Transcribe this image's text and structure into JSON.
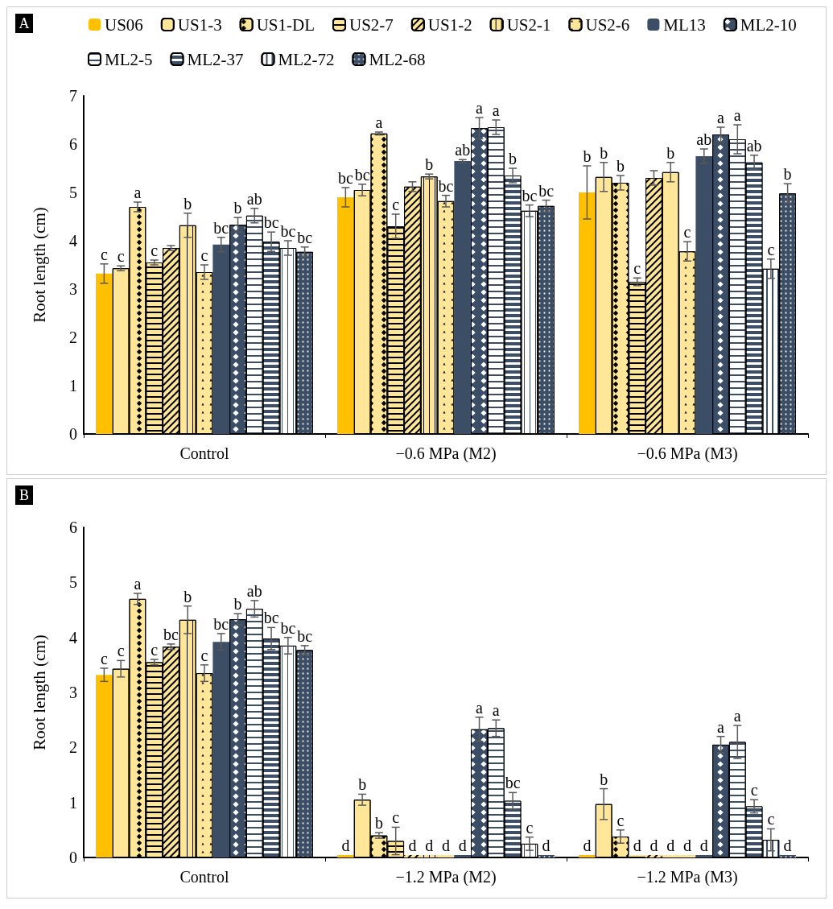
{
  "chart_data": [
    {
      "type": "bar",
      "annotations": [
        "A"
      ],
      "ylabel": "Root length (cm)",
      "categories": [
        "Control",
        "−0.6 MPa (M2)",
        "−0.6 MPa (M3)"
      ],
      "ylim": [
        0,
        7
      ],
      "yticks": [
        0,
        1,
        2,
        3,
        4,
        5,
        6,
        7
      ],
      "grid": false,
      "legend": "top",
      "series": [
        {
          "name": "US06",
          "color": "#ffc000",
          "values": [
            3.32,
            4.9,
            5.0
          ],
          "errors": [
            0.2,
            0.2,
            0.55
          ],
          "value_labels": [
            "c",
            "bc",
            "b"
          ]
        },
        {
          "name": "US1-3",
          "color": "#ffe699",
          "values": [
            3.43,
            5.05,
            5.32
          ],
          "errors": [
            0.05,
            0.12,
            0.3
          ],
          "value_labels": [
            "c",
            "bc",
            "b"
          ]
        },
        {
          "name": "US1-DL",
          "color": "#ffe699",
          "values": [
            4.7,
            6.22,
            5.2
          ],
          "errors": [
            0.1,
            0.03,
            0.15
          ],
          "value_labels": [
            "a",
            "a",
            "b"
          ]
        },
        {
          "name": "US2-7",
          "color": "#ffe699",
          "values": [
            3.55,
            4.3,
            3.15
          ],
          "errors": [
            0.05,
            0.25,
            0.08
          ],
          "value_labels": [
            "c",
            "c",
            "c"
          ]
        },
        {
          "name": "US1-2",
          "color": "#ffe699",
          "values": [
            3.85,
            5.12,
            5.3
          ],
          "errors": [
            0.05,
            0.1,
            0.15
          ],
          "value_labels": [
            null,
            null,
            null
          ]
        },
        {
          "name": "US2-1",
          "color": "#ffe699",
          "values": [
            4.32,
            5.33,
            5.42
          ],
          "errors": [
            0.25,
            0.05,
            0.2
          ],
          "value_labels": [
            "b",
            "b",
            "b"
          ]
        },
        {
          "name": "US2-6",
          "color": "#ffe699",
          "values": [
            3.35,
            4.82,
            3.78
          ],
          "errors": [
            0.15,
            0.12,
            0.2
          ],
          "value_labels": [
            "c",
            "bc",
            "c"
          ]
        },
        {
          "name": "ML13",
          "color": "#3b4e66",
          "values": [
            3.92,
            5.65,
            5.75
          ],
          "errors": [
            0.15,
            0.03,
            0.15
          ],
          "value_labels": [
            "bc",
            "ab",
            "ab"
          ]
        },
        {
          "name": "ML2-10",
          "color": "#3b4e66",
          "values": [
            4.33,
            6.33,
            6.2
          ],
          "errors": [
            0.15,
            0.22,
            0.15
          ],
          "value_labels": [
            "b",
            "a",
            "a"
          ]
        },
        {
          "name": "ML2-5",
          "color": "#ffffff",
          "values": [
            4.52,
            6.35,
            6.1
          ],
          "errors": [
            0.15,
            0.15,
            0.3
          ],
          "value_labels": [
            "ab",
            "a",
            "a"
          ]
        },
        {
          "name": "ML2-37",
          "color": "#3b4e66",
          "values": [
            3.98,
            5.35,
            5.62
          ],
          "errors": [
            0.2,
            0.15,
            0.15
          ],
          "value_labels": [
            "bc",
            "b",
            "ab"
          ]
        },
        {
          "name": "ML2-72",
          "color": "#ffffff",
          "values": [
            3.85,
            4.62,
            3.42
          ],
          "errors": [
            0.15,
            0.12,
            0.2
          ],
          "value_labels": [
            "bc",
            "bc",
            "c"
          ]
        },
        {
          "name": "ML2-68",
          "color": "#3b4e66",
          "values": [
            3.77,
            4.72,
            4.98
          ],
          "errors": [
            0.1,
            0.12,
            0.2
          ],
          "value_labels": [
            "bc",
            "bc",
            "b"
          ]
        }
      ]
    },
    {
      "type": "bar",
      "annotations": [
        "B"
      ],
      "ylabel": "Root length (cm)",
      "categories": [
        "Control",
        "−1.2 MPa (M2)",
        "−1.2 MPa (M3)"
      ],
      "ylim": [
        0,
        6
      ],
      "yticks": [
        0,
        1,
        2,
        3,
        4,
        5,
        6
      ],
      "grid": false,
      "series": [
        {
          "color": "#ffc000",
          "values": [
            3.32,
            0,
            0
          ],
          "errors": [
            0.12,
            null,
            null
          ],
          "value_labels": [
            "c",
            "d",
            "d"
          ]
        },
        {
          "color": "#ffe699",
          "values": [
            3.43,
            1.05,
            0.97
          ],
          "errors": [
            0.15,
            0.1,
            0.28
          ],
          "value_labels": [
            "c",
            "b",
            "b"
          ]
        },
        {
          "color": "#ffe699",
          "values": [
            4.7,
            0.4,
            0.38
          ],
          "errors": [
            0.1,
            0.05,
            0.12
          ],
          "value_labels": [
            "a",
            "b",
            "c"
          ]
        },
        {
          "color": "#ffe699",
          "values": [
            3.55,
            0.3,
            0
          ],
          "errors": [
            0.05,
            0.25,
            null
          ],
          "value_labels": [
            "c",
            "c",
            "d"
          ]
        },
        {
          "color": "#ffe699",
          "values": [
            3.83,
            0,
            0
          ],
          "errors": [
            0.05,
            null,
            null
          ],
          "value_labels": [
            "bc",
            "d",
            "d"
          ]
        },
        {
          "color": "#ffe699",
          "values": [
            4.32,
            0,
            0
          ],
          "errors": [
            0.25,
            null,
            null
          ],
          "value_labels": [
            "b",
            "d",
            "d"
          ]
        },
        {
          "color": "#ffe699",
          "values": [
            3.35,
            0,
            0
          ],
          "errors": [
            0.15,
            null,
            null
          ],
          "value_labels": [
            "c",
            "d",
            "d"
          ]
        },
        {
          "color": "#3b4e66",
          "values": [
            3.92,
            0,
            0
          ],
          "errors": [
            0.15,
            null,
            null
          ],
          "value_labels": [
            "bc",
            "d",
            "d"
          ]
        },
        {
          "color": "#3b4e66",
          "values": [
            4.33,
            2.33,
            2.05
          ],
          "errors": [
            0.1,
            0.22,
            0.15
          ],
          "value_labels": [
            "b",
            "a",
            "a"
          ]
        },
        {
          "color": "#ffffff",
          "values": [
            4.52,
            2.35,
            2.1
          ],
          "errors": [
            0.15,
            0.15,
            0.3
          ],
          "value_labels": [
            "ab",
            "a",
            "a"
          ]
        },
        {
          "color": "#3b4e66",
          "values": [
            3.98,
            1.03,
            0.93
          ],
          "errors": [
            0.2,
            0.15,
            0.12
          ],
          "value_labels": [
            "bc",
            "bc",
            "c"
          ]
        },
        {
          "color": "#ffffff",
          "values": [
            3.85,
            0.25,
            0.32
          ],
          "errors": [
            0.15,
            0.12,
            0.2
          ],
          "value_labels": [
            "bc",
            "c",
            "c"
          ]
        },
        {
          "color": "#3b4e66",
          "values": [
            3.77,
            0,
            0
          ],
          "errors": [
            0.08,
            null,
            null
          ],
          "value_labels": [
            "bc",
            "d",
            "d"
          ]
        }
      ]
    }
  ]
}
